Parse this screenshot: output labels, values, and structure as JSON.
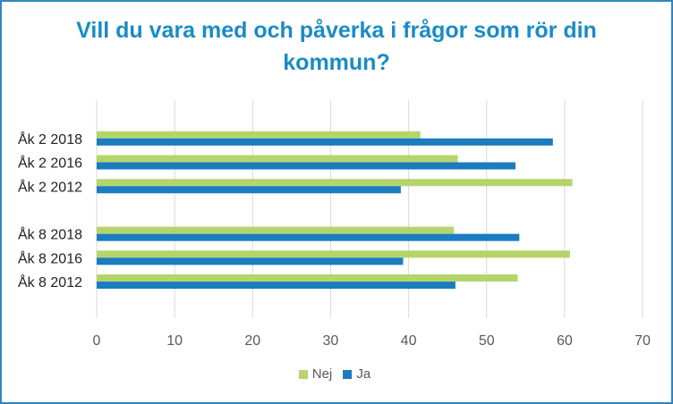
{
  "chart_data": {
    "type": "bar",
    "orientation": "horizontal",
    "title_lines": [
      "Vill du vara med och påverka i frågor som rör din",
      "kommun?"
    ],
    "categories": [
      "Åk 2 2018",
      "Åk 2 2016",
      "Åk 2 2012",
      "Åk 8 2018",
      "Åk 8 2016",
      "Åk 8 2012"
    ],
    "series": [
      {
        "name": "Nej",
        "color": "#b5d56b",
        "values": [
          41.5,
          46.3,
          61,
          45.8,
          60.7,
          54
        ]
      },
      {
        "name": "Ja",
        "color": "#1b7cbf",
        "values": [
          58.5,
          53.7,
          39,
          54.2,
          39.3,
          46
        ]
      }
    ],
    "xlim": [
      0,
      70
    ],
    "xticks": [
      0,
      10,
      20,
      30,
      40,
      50,
      60,
      70
    ],
    "grid": true,
    "legend_position": "bottom"
  }
}
